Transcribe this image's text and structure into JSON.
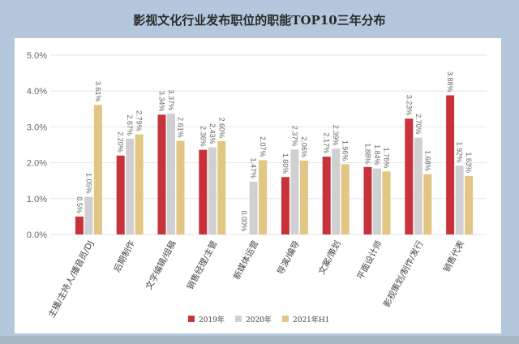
{
  "chart_data": {
    "type": "bar",
    "title": "影视文化行业发布职位的职能TOP10三年分布",
    "categories": [
      "主播/主持人/播音员/DJ",
      "后期制作",
      "文字编辑/组稿",
      "销售经理/主管",
      "新媒体运营",
      "导演/编导",
      "文案/策划",
      "平面设计师",
      "影视策划/制作/发行",
      "销售代表"
    ],
    "series": [
      {
        "name": "2019年",
        "color": "#c8323a",
        "values": [
          0.5,
          2.2,
          3.34,
          2.36,
          0.0,
          1.6,
          2.17,
          1.88,
          3.23,
          3.88
        ],
        "labels": [
          "0.5%",
          "2.20%",
          "3.34%",
          "2.36%",
          "0.00%",
          "1.60%",
          "2.17%",
          "1.88%",
          "3.23%",
          "3.88%"
        ]
      },
      {
        "name": "2020年",
        "color": "#d0d0d2",
        "values": [
          1.05,
          2.67,
          3.37,
          2.43,
          1.47,
          2.37,
          2.39,
          1.84,
          2.7,
          1.92
        ],
        "labels": [
          "1.05%",
          "2.67%",
          "3.37%",
          "2.43%",
          "1.47%",
          "2.37%",
          "2.39%",
          "1.84%",
          "2.70%",
          "1.92%"
        ]
      },
      {
        "name": "2021年H1",
        "color": "#e2c683",
        "values": [
          3.61,
          2.79,
          2.61,
          2.6,
          2.07,
          2.06,
          1.96,
          1.76,
          1.68,
          1.63
        ],
        "labels": [
          "3.61%",
          "2.79%",
          "2.61%",
          "2.60%",
          "2.07%",
          "2.06%",
          "1.96%",
          "1.76%",
          "1.68%",
          "1.63%"
        ]
      }
    ],
    "yticks": [
      "0.0%",
      "1.0%",
      "2.0%",
      "3.0%",
      "4.0%",
      "5.0%"
    ],
    "ylim": [
      0,
      5
    ],
    "grid": true,
    "legend": "bottom"
  }
}
